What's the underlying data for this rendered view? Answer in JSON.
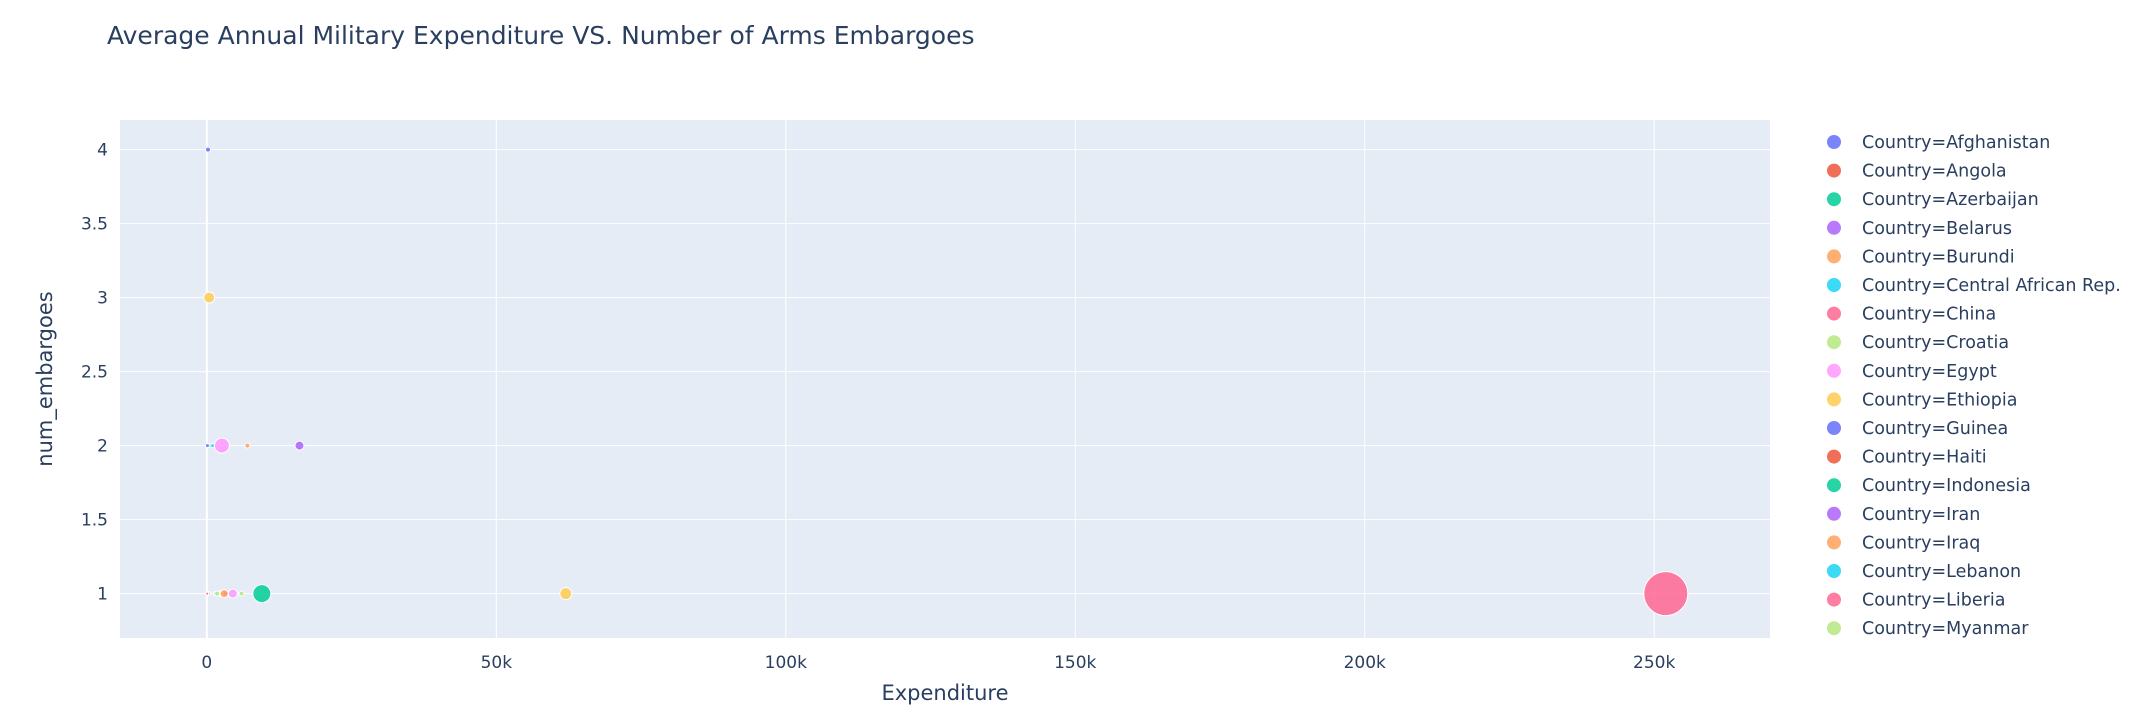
{
  "chart_data": {
    "type": "scatter",
    "title": "Average Annual Military Expenditure VS. Number of Arms Embargoes",
    "xlabel": "Expenditure",
    "ylabel": "num_embargoes",
    "xlim": [
      -15000,
      270000
    ],
    "ylim": [
      0.7,
      4.2
    ],
    "xticks": [
      0,
      50000,
      100000,
      150000,
      200000,
      250000
    ],
    "xtick_labels": [
      "0",
      "50k",
      "100k",
      "150k",
      "200k",
      "250k"
    ],
    "yticks": [
      1,
      1.5,
      2,
      2.5,
      3,
      3.5,
      4
    ],
    "ytick_labels": [
      "1",
      "1.5",
      "2",
      "2.5",
      "3",
      "3.5",
      "4"
    ],
    "grid": true,
    "legend_position": "right",
    "background_color": "#E5ECF6",
    "series": [
      {
        "name": "Country=Afghanistan",
        "color": "#636efa",
        "points": [
          {
            "x": 200,
            "y": 4,
            "size": 5
          }
        ]
      },
      {
        "name": "Country=Angola",
        "color": "#EF553B",
        "points": [
          {
            "x": 300,
            "y": 1,
            "size": 4
          }
        ]
      },
      {
        "name": "Country=Azerbaijan",
        "color": "#00cc96",
        "points": [
          {
            "x": 600,
            "y": 2,
            "size": 4
          }
        ]
      },
      {
        "name": "Country=Belarus",
        "color": "#ab63fa",
        "points": [
          {
            "x": 16000,
            "y": 2,
            "size": 9
          }
        ]
      },
      {
        "name": "Country=Burundi",
        "color": "#FFA15A",
        "points": [
          {
            "x": 7000,
            "y": 2,
            "size": 5
          }
        ]
      },
      {
        "name": "Country=Central African Rep.",
        "color": "#19d3f3",
        "points": [
          {
            "x": 1000,
            "y": 2,
            "size": 4
          }
        ]
      },
      {
        "name": "Country=China",
        "color": "#FF6692",
        "points": [
          {
            "x": 252000,
            "y": 1,
            "size": 44
          }
        ]
      },
      {
        "name": "Country=Croatia",
        "color": "#B6E880",
        "points": [
          {
            "x": 6000,
            "y": 1,
            "size": 5
          }
        ]
      },
      {
        "name": "Country=Egypt",
        "color": "#FF97FF",
        "points": [
          {
            "x": 2600,
            "y": 2,
            "size": 15
          },
          {
            "x": 4500,
            "y": 1,
            "size": 9
          }
        ]
      },
      {
        "name": "Country=Ethiopia",
        "color": "#FECB52",
        "points": [
          {
            "x": 400,
            "y": 3,
            "size": 11
          },
          {
            "x": 62000,
            "y": 1,
            "size": 12
          },
          {
            "x": 2500,
            "y": 1,
            "size": 6
          }
        ]
      },
      {
        "name": "Country=Guinea",
        "color": "#636efa",
        "points": [
          {
            "x": 100,
            "y": 2,
            "size": 4
          }
        ]
      },
      {
        "name": "Country=Haiti",
        "color": "#EF553B",
        "points": [
          {
            "x": 150,
            "y": 1,
            "size": 3
          }
        ]
      },
      {
        "name": "Country=Indonesia",
        "color": "#00cc96",
        "points": [
          {
            "x": 9500,
            "y": 1,
            "size": 18
          }
        ]
      },
      {
        "name": "Country=Iran",
        "color": "#ab63fa",
        "points": [
          {
            "x": 3200,
            "y": 1,
            "size": 5
          }
        ]
      },
      {
        "name": "Country=Iraq",
        "color": "#FFA15A",
        "points": [
          {
            "x": 3000,
            "y": 1,
            "size": 8
          }
        ]
      },
      {
        "name": "Country=Lebanon",
        "color": "#19d3f3",
        "points": [
          {
            "x": 1500,
            "y": 1,
            "size": 4
          }
        ]
      },
      {
        "name": "Country=Liberia",
        "color": "#FF6692",
        "points": [
          {
            "x": 50,
            "y": 1,
            "size": 3
          }
        ]
      },
      {
        "name": "Country=Myanmar",
        "color": "#B6E880",
        "points": [
          {
            "x": 1800,
            "y": 1,
            "size": 5
          }
        ]
      }
    ]
  }
}
